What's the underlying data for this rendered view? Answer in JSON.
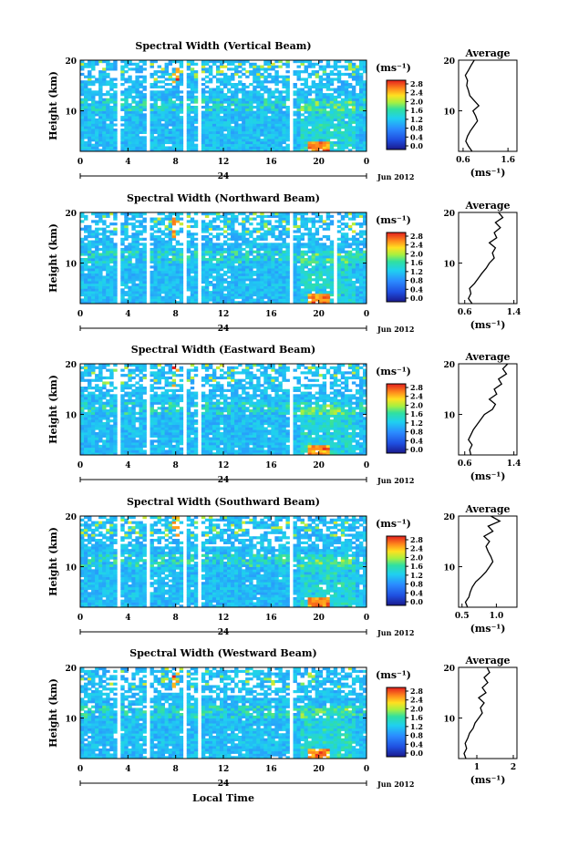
{
  "figure": {
    "xlabel": "Local Time",
    "panels_colorbar_unit": "(ms⁻¹)",
    "avg_xunit": "(ms⁻¹)"
  },
  "chart_data": [
    {
      "type": "heatmap",
      "title": "Spectral Width (Vertical Beam)",
      "ylabel": "Height (km)",
      "ylim": [
        2,
        20
      ],
      "yticks": [
        "10",
        "20"
      ],
      "xlim": [
        0,
        24
      ],
      "xticks": [
        "0",
        "4",
        "8",
        "12",
        "16",
        "20",
        "0"
      ],
      "day_label": "24",
      "date_label": "Jun 2012",
      "colorbar": {
        "label": "(ms⁻¹)",
        "range": [
          0.0,
          2.8
        ],
        "ticks": [
          "2.8",
          "2.4",
          "2.0",
          "1.6",
          "1.2",
          "0.8",
          "0.4",
          "0.0"
        ]
      },
      "gaps_hours": [
        [
          3.2,
          3.5
        ],
        [
          5.6,
          5.9
        ],
        [
          8.6,
          8.9
        ],
        [
          9.8,
          10.0
        ],
        [
          17.4,
          17.8
        ]
      ],
      "average": {
        "title": "Average",
        "xlabel": "(ms⁻¹)",
        "xlim": [
          0.5,
          1.8
        ],
        "xticks": [
          "0.6",
          "1.6"
        ],
        "yticks": [
          "10",
          "20"
        ],
        "height": [
          2,
          3,
          4,
          5,
          6,
          7,
          8,
          9,
          10,
          11,
          12,
          13,
          14,
          15,
          16,
          17,
          18,
          19,
          20
        ],
        "value": [
          0.8,
          0.72,
          0.66,
          0.7,
          0.76,
          0.84,
          0.92,
          0.88,
          0.82,
          0.95,
          0.85,
          0.75,
          0.72,
          0.68,
          0.7,
          0.65,
          0.72,
          0.78,
          0.85
        ]
      }
    },
    {
      "type": "heatmap",
      "title": "Spectral Width (Northward Beam)",
      "ylabel": "Height (km)",
      "ylim": [
        2,
        20
      ],
      "yticks": [
        "10",
        "20"
      ],
      "xlim": [
        0,
        24
      ],
      "xticks": [
        "0",
        "4",
        "8",
        "12",
        "16",
        "20",
        "0"
      ],
      "day_label": "24",
      "date_label": "Jun 2012",
      "colorbar": {
        "label": "(ms⁻¹)",
        "range": [
          0.0,
          2.8
        ],
        "ticks": [
          "2.8",
          "2.4",
          "2.0",
          "1.6",
          "1.2",
          "0.8",
          "0.4",
          "0.0"
        ]
      },
      "gaps_hours": [
        [
          3.2,
          3.5
        ],
        [
          5.6,
          5.9
        ],
        [
          8.6,
          8.9
        ],
        [
          9.8,
          10.0
        ],
        [
          17.4,
          17.8
        ],
        [
          21.2,
          21.5
        ]
      ],
      "average": {
        "title": "Average",
        "xlabel": "(ms⁻¹)",
        "xlim": [
          0.5,
          1.45
        ],
        "xticks": [
          "0.6",
          "1.4"
        ],
        "yticks": [
          "10",
          "20"
        ],
        "height": [
          2,
          3,
          4,
          5,
          6,
          7,
          8,
          9,
          10,
          11,
          12,
          13,
          14,
          15,
          16,
          17,
          18,
          19,
          20
        ],
        "value": [
          0.72,
          0.66,
          0.7,
          0.68,
          0.76,
          0.82,
          0.88,
          0.95,
          1.0,
          1.08,
          1.05,
          1.1,
          1.0,
          1.12,
          1.08,
          1.18,
          1.1,
          1.22,
          1.15
        ]
      }
    },
    {
      "type": "heatmap",
      "title": "Spectral Width (Eastward Beam)",
      "ylabel": "Height (km)",
      "ylim": [
        2,
        20
      ],
      "yticks": [
        "10",
        "20"
      ],
      "xlim": [
        0,
        24
      ],
      "xticks": [
        "0",
        "4",
        "8",
        "12",
        "16",
        "20",
        "0"
      ],
      "day_label": "24",
      "date_label": "Jun 2012",
      "colorbar": {
        "label": "(ms⁻¹)",
        "range": [
          0.0,
          2.8
        ],
        "ticks": [
          "2.8",
          "2.4",
          "2.0",
          "1.6",
          "1.2",
          "0.8",
          "0.4",
          "0.0"
        ]
      },
      "gaps_hours": [
        [
          3.2,
          3.5
        ],
        [
          5.6,
          5.9
        ],
        [
          8.6,
          8.9
        ],
        [
          9.8,
          10.0
        ],
        [
          17.4,
          17.8
        ]
      ],
      "average": {
        "title": "Average",
        "xlabel": "(ms⁻¹)",
        "xlim": [
          0.5,
          1.45
        ],
        "xticks": [
          "0.6",
          "1.4"
        ],
        "yticks": [
          "10",
          "20"
        ],
        "height": [
          2,
          3,
          4,
          5,
          6,
          7,
          8,
          9,
          10,
          11,
          12,
          13,
          14,
          15,
          16,
          17,
          18,
          19,
          20
        ],
        "value": [
          0.7,
          0.68,
          0.72,
          0.66,
          0.7,
          0.74,
          0.8,
          0.86,
          0.92,
          1.05,
          1.1,
          1.0,
          1.12,
          1.08,
          1.2,
          1.15,
          1.28,
          1.22,
          1.3
        ]
      }
    },
    {
      "type": "heatmap",
      "title": "Spectral Width (Southward Beam)",
      "ylabel": "Height (km)",
      "ylim": [
        2,
        20
      ],
      "yticks": [
        "10",
        "20"
      ],
      "xlim": [
        0,
        24
      ],
      "xticks": [
        "0",
        "4",
        "8",
        "12",
        "16",
        "20",
        "0"
      ],
      "day_label": "24",
      "date_label": "Jun 2012",
      "colorbar": {
        "label": "(ms⁻¹)",
        "range": [
          0.0,
          2.8
        ],
        "ticks": [
          "2.8",
          "2.4",
          "2.0",
          "1.6",
          "1.2",
          "0.8",
          "0.4",
          "0.0"
        ]
      },
      "gaps_hours": [
        [
          3.2,
          3.5
        ],
        [
          5.6,
          5.9
        ],
        [
          8.6,
          8.9
        ],
        [
          9.8,
          10.0
        ],
        [
          17.4,
          17.8
        ]
      ],
      "average": {
        "title": "Average",
        "xlabel": "(ms⁻¹)",
        "xlim": [
          0.45,
          1.3
        ],
        "xticks": [
          "0.5",
          "1.0"
        ],
        "yticks": [
          "10",
          "20"
        ],
        "height": [
          2,
          3,
          4,
          5,
          6,
          7,
          8,
          9,
          10,
          11,
          12,
          13,
          14,
          15,
          16,
          17,
          18,
          19,
          20
        ],
        "value": [
          0.58,
          0.55,
          0.6,
          0.62,
          0.65,
          0.7,
          0.78,
          0.85,
          0.9,
          0.95,
          0.92,
          0.88,
          0.85,
          0.9,
          0.82,
          0.95,
          0.88,
          1.05,
          0.92
        ]
      }
    },
    {
      "type": "heatmap",
      "title": "Spectral Width (Westward Beam)",
      "ylabel": "Height (km)",
      "ylim": [
        2,
        20
      ],
      "yticks": [
        "10",
        "20"
      ],
      "xlim": [
        0,
        24
      ],
      "xticks": [
        "0",
        "4",
        "8",
        "12",
        "16",
        "20",
        "0"
      ],
      "day_label": "24",
      "date_label": "Jun 2012",
      "colorbar": {
        "label": "(ms⁻¹)",
        "range": [
          0.0,
          2.8
        ],
        "ticks": [
          "2.8",
          "2.4",
          "2.0",
          "1.6",
          "1.2",
          "0.8",
          "0.4",
          "0.0"
        ]
      },
      "gaps_hours": [
        [
          3.2,
          3.5
        ],
        [
          5.6,
          5.9
        ],
        [
          8.6,
          8.9
        ],
        [
          9.8,
          10.0
        ],
        [
          17.4,
          17.8
        ]
      ],
      "average": {
        "title": "Average",
        "xlabel": "(ms⁻¹)",
        "xlim": [
          0.5,
          2.1
        ],
        "xticks": [
          "1",
          "2"
        ],
        "yticks": [
          "10",
          "20"
        ],
        "height": [
          2,
          3,
          4,
          5,
          6,
          7,
          8,
          9,
          10,
          11,
          12,
          13,
          14,
          15,
          16,
          17,
          18,
          19,
          20
        ],
        "value": [
          0.7,
          0.65,
          0.72,
          0.68,
          0.75,
          0.8,
          0.9,
          0.95,
          1.05,
          1.15,
          1.1,
          1.2,
          1.05,
          1.25,
          1.15,
          1.3,
          1.2,
          1.35,
          1.28
        ]
      }
    }
  ]
}
